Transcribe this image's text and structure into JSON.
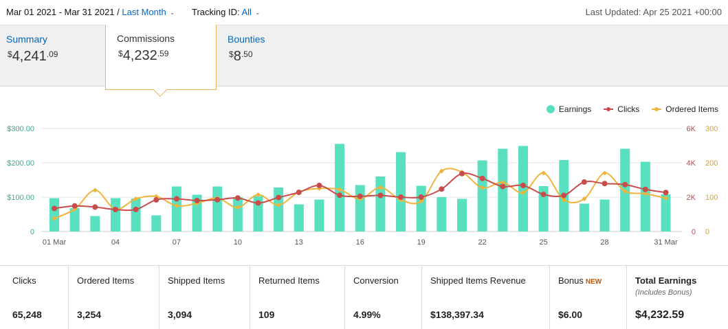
{
  "header": {
    "date_range": "Mar 01 2021 - Mar 31 2021",
    "separator": "/",
    "period_label": "Last Month",
    "tracking_label": "Tracking ID:",
    "tracking_value": "All",
    "last_updated": "Last Updated: Apr 25 2021 +00:00"
  },
  "tabs": [
    {
      "label": "Summary",
      "currency": "$",
      "whole": "4,241",
      "cents": ".09",
      "active": false
    },
    {
      "label": "Commissions",
      "currency": "$",
      "whole": "4,232",
      "cents": ".59",
      "active": true
    },
    {
      "label": "Bounties",
      "currency": "$",
      "whole": "8",
      "cents": ".50",
      "active": false
    }
  ],
  "legend": {
    "earnings": "Earnings",
    "clicks": "Clicks",
    "ordered": "Ordered Items"
  },
  "colors": {
    "earnings": "#58e0c0",
    "clicks": "#c84c4a",
    "ordered": "#f0b43c",
    "link": "#0066c0",
    "tab_accent": "#e3b85c"
  },
  "chart_data": {
    "type": "bar",
    "x": [
      "01 Mar",
      "02",
      "03",
      "04",
      "05",
      "06",
      "07",
      "08",
      "09",
      "10",
      "11",
      "12",
      "13",
      "14",
      "15",
      "16",
      "17",
      "18",
      "19",
      "20",
      "21",
      "22",
      "23",
      "24",
      "25",
      "26",
      "27",
      "28",
      "29",
      "30",
      "31 Mar"
    ],
    "x_tick_labels": [
      "01 Mar",
      "04",
      "07",
      "10",
      "13",
      "16",
      "19",
      "22",
      "25",
      "28",
      "31 Mar"
    ],
    "left_axis": {
      "ticks": [
        "0",
        "$100.00",
        "$200.00",
        "$300.00"
      ],
      "range": [
        0,
        300
      ]
    },
    "right_axis_1": {
      "ticks": [
        "0",
        "2K",
        "4K",
        "6K"
      ],
      "range": [
        0,
        6000
      ]
    },
    "right_axis_2": {
      "ticks": [
        "0",
        "100",
        "200",
        "300"
      ],
      "range": [
        0,
        300
      ]
    },
    "grid": true,
    "legend_position": "top-right",
    "series": [
      {
        "name": "Earnings",
        "type": "bar",
        "axis": "left",
        "values": [
          97,
          68,
          45,
          97,
          96,
          47,
          131,
          107,
          131,
          100,
          103,
          128,
          79,
          93,
          255,
          135,
          160,
          231,
          133,
          100,
          95,
          207,
          241,
          249,
          132,
          208,
          81,
          93,
          241,
          203,
          108
        ]
      },
      {
        "name": "Clicks",
        "type": "line",
        "axis": "right_1",
        "values": [
          1340,
          1490,
          1420,
          1280,
          1280,
          1840,
          1900,
          1800,
          1850,
          1950,
          1660,
          1980,
          2280,
          2680,
          2110,
          2050,
          2100,
          2000,
          2000,
          2470,
          3370,
          3090,
          2620,
          2680,
          2160,
          2100,
          2880,
          2790,
          2730,
          2450,
          2270
        ]
      },
      {
        "name": "Ordered Items",
        "type": "line",
        "axis": "right_2",
        "values": [
          38,
          65,
          120,
          65,
          95,
          102,
          75,
          82,
          97,
          70,
          107,
          77,
          115,
          125,
          122,
          95,
          128,
          92,
          88,
          176,
          173,
          127,
          143,
          113,
          170,
          92,
          95,
          170,
          117,
          110,
          97
        ]
      }
    ]
  },
  "summary": [
    {
      "label": "Clicks",
      "value": "65,248"
    },
    {
      "label": "Ordered Items",
      "value": "3,254"
    },
    {
      "label": "Shipped Items",
      "value": "3,094"
    },
    {
      "label": "Returned Items",
      "value": "109"
    },
    {
      "label": "Conversion",
      "value": "4.99%"
    },
    {
      "label": "Shipped Items Revenue",
      "value": "$138,397.34"
    },
    {
      "label": "Bonus",
      "badge": "NEW",
      "value": "$6.00"
    },
    {
      "label": "Total Earnings",
      "sub": "(Includes Bonus)",
      "value": "$4,232.59"
    }
  ]
}
